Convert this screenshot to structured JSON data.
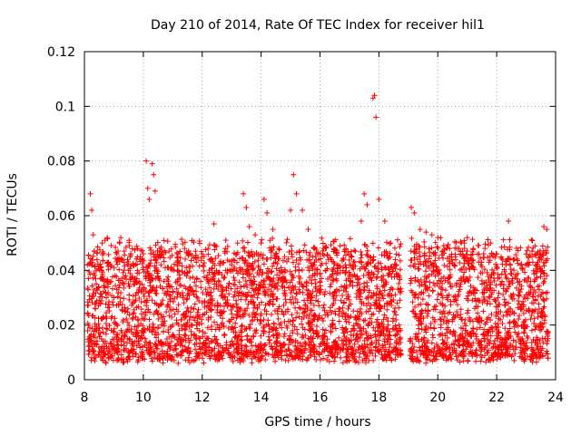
{
  "chart_data": {
    "type": "scatter",
    "title": "Day 210 of 2014, Rate Of TEC Index for receiver hil1",
    "xlabel": "GPS time / hours",
    "ylabel": "ROTI / TECUs",
    "xlim": [
      8,
      24
    ],
    "ylim": [
      0,
      0.12
    ],
    "x_ticks": [
      "8",
      "10",
      "12",
      "14",
      "16",
      "18",
      "20",
      "22",
      "24"
    ],
    "y_ticks": [
      "0",
      "0.02",
      "0.04",
      "0.06",
      "0.08",
      "0.1",
      "0.12"
    ],
    "grid": true,
    "marker": "+",
    "color": "#ff0000",
    "data_gap_hours": [
      18.75,
      19.05
    ],
    "series": [
      {
        "name": "ROTI",
        "x": [
          8.1,
          8.2,
          8.25,
          8.3,
          8.4,
          8.5,
          8.6,
          8.7,
          8.8,
          8.9,
          9.0,
          9.1,
          9.2,
          9.3,
          9.4,
          9.5,
          9.6,
          9.7,
          9.8,
          9.9,
          10.0,
          10.1,
          10.15,
          10.2,
          10.3,
          10.35,
          10.4,
          10.5,
          10.6,
          10.7,
          10.8,
          10.9,
          11.0,
          11.2,
          11.4,
          11.6,
          11.8,
          12.0,
          12.2,
          12.4,
          12.6,
          12.8,
          13.0,
          13.2,
          13.4,
          13.5,
          13.6,
          13.8,
          14.0,
          14.1,
          14.2,
          14.4,
          14.6,
          14.8,
          15.0,
          15.1,
          15.2,
          15.4,
          15.6,
          15.8,
          16.0,
          16.2,
          16.4,
          16.6,
          16.8,
          17.0,
          17.2,
          17.4,
          17.5,
          17.6,
          17.8,
          17.85,
          17.9,
          18.0,
          18.2,
          18.4,
          18.6,
          18.7,
          19.1,
          19.2,
          19.4,
          19.6,
          19.8,
          20.0,
          20.2,
          20.4,
          20.6,
          20.8,
          21.0,
          21.2,
          21.4,
          21.6,
          21.8,
          22.0,
          22.2,
          22.4,
          22.6,
          22.8,
          23.0,
          23.2,
          23.4,
          23.6,
          23.7
        ],
        "y": [
          0.042,
          0.068,
          0.062,
          0.053,
          0.035,
          0.029,
          0.05,
          0.051,
          0.034,
          0.036,
          0.03,
          0.033,
          0.05,
          0.044,
          0.038,
          0.04,
          0.037,
          0.035,
          0.04,
          0.045,
          0.041,
          0.08,
          0.07,
          0.066,
          0.079,
          0.075,
          0.069,
          0.045,
          0.042,
          0.036,
          0.034,
          0.031,
          0.032,
          0.04,
          0.048,
          0.046,
          0.043,
          0.045,
          0.048,
          0.057,
          0.042,
          0.04,
          0.042,
          0.05,
          0.068,
          0.063,
          0.056,
          0.053,
          0.05,
          0.066,
          0.061,
          0.055,
          0.048,
          0.045,
          0.062,
          0.075,
          0.068,
          0.062,
          0.055,
          0.048,
          0.046,
          0.04,
          0.038,
          0.042,
          0.044,
          0.046,
          0.047,
          0.058,
          0.068,
          0.064,
          0.103,
          0.104,
          0.096,
          0.066,
          0.058,
          0.05,
          0.042,
          0.033,
          0.063,
          0.061,
          0.055,
          0.054,
          0.053,
          0.052,
          0.049,
          0.048,
          0.045,
          0.05,
          0.052,
          0.048,
          0.046,
          0.048,
          0.05,
          0.046,
          0.044,
          0.058,
          0.044,
          0.042,
          0.046,
          0.045,
          0.043,
          0.056,
          0.055
        ]
      }
    ]
  }
}
